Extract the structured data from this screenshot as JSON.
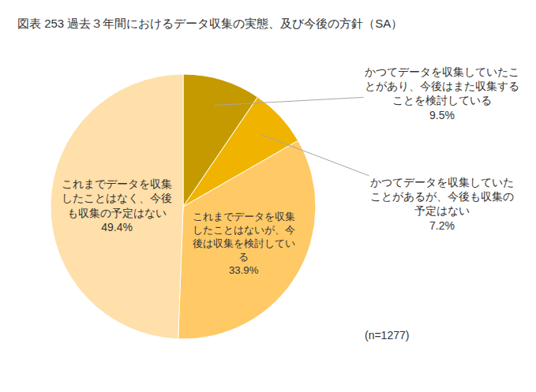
{
  "chart_data": {
    "type": "pie",
    "title": "図表 253 過去３年間におけるデータ収集の実態、及び今後の方針（SA）",
    "categories": [
      "かつてデータを収集していたことがあり、今後はまた収集することを検討している",
      "かつてデータを収集していたことがあるが、今後も収集の予定はない",
      "これまでデータを収集したことはないが、今後は収集を検討している",
      "これまでデータを収集したことはなく、今後も収集の予定はない"
    ],
    "values": [
      9.5,
      7.2,
      33.9,
      49.4
    ],
    "value_labels": [
      "9.5%",
      "7.2%",
      "33.9%",
      "49.4%"
    ],
    "colors": [
      "#c49a00",
      "#f0b400",
      "#ffc966",
      "#ffdfaa"
    ],
    "data_labels": true,
    "annotations": [
      "(n=1277)"
    ]
  }
}
